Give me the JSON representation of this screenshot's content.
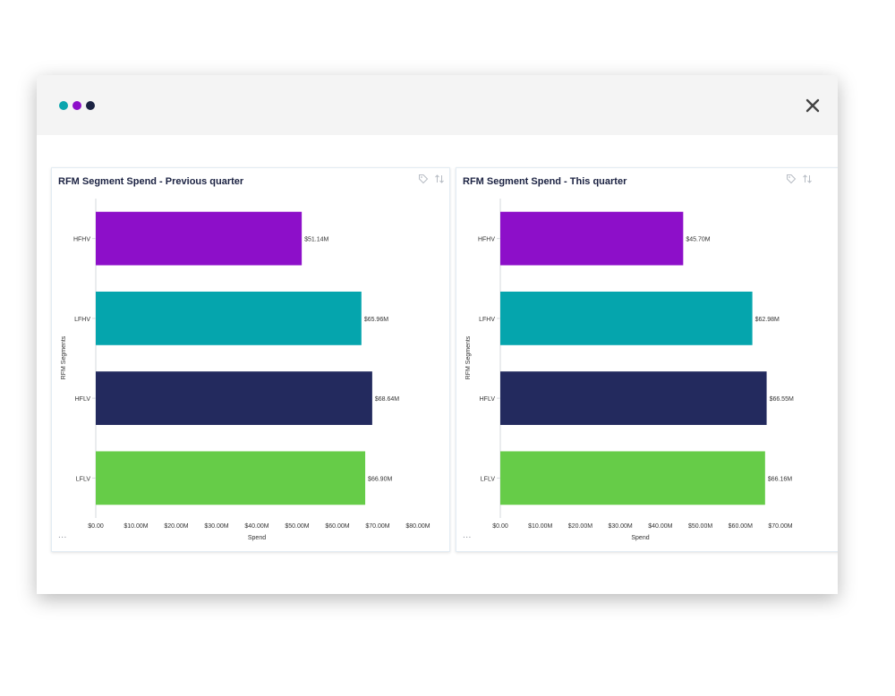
{
  "window": {
    "dots": [
      {
        "name": "teal-dot",
        "color": "#0aa5ad"
      },
      {
        "name": "purple-dot",
        "color": "#8d0fc9"
      },
      {
        "name": "navy-dot",
        "color": "#1b2242"
      }
    ],
    "close_icon": "close-icon"
  },
  "panels": [
    {
      "title": "RFM Segment Spend - Previous quarter",
      "more_label": "...",
      "tag_icon": "tag-icon",
      "sort_icon": "sort-icon"
    },
    {
      "title": "RFM Segment Spend - This quarter",
      "more_label": "...",
      "tag_icon": "tag-icon",
      "sort_icon": "sort-icon"
    }
  ],
  "chart_data": [
    {
      "type": "bar",
      "orientation": "horizontal",
      "title": "RFM Segment Spend - Previous quarter",
      "xlabel": "Spend",
      "ylabel": "RFM Segments",
      "categories": [
        "HFHV",
        "LFHV",
        "HFLV",
        "LFLV"
      ],
      "values": [
        51.14,
        65.96,
        68.64,
        66.9
      ],
      "value_labels": [
        "$51.14M",
        "$65.96M",
        "$68.64M",
        "$66.90M"
      ],
      "colors": [
        "#8d0fc9",
        "#05a5ad",
        "#232a5e",
        "#66cc48"
      ],
      "xticks": [
        0,
        10,
        20,
        30,
        40,
        50,
        60,
        70,
        80
      ],
      "xtick_labels": [
        "$0.00",
        "$10.00M",
        "$20.00M",
        "$30.00M",
        "$40.00M",
        "$50.00M",
        "$60.00M",
        "$70.00M",
        "$80.00M"
      ],
      "xlim": [
        0,
        80
      ],
      "grid": false
    },
    {
      "type": "bar",
      "orientation": "horizontal",
      "title": "RFM Segment Spend - This quarter",
      "xlabel": "Spend",
      "ylabel": "RFM Segments",
      "categories": [
        "HFHV",
        "LFHV",
        "HFLV",
        "LFLV"
      ],
      "values": [
        45.7,
        62.98,
        66.55,
        66.16
      ],
      "value_labels": [
        "$45.70M",
        "$62.98M",
        "$66.55M",
        "$66.16M"
      ],
      "colors": [
        "#8d0fc9",
        "#05a5ad",
        "#232a5e",
        "#66cc48"
      ],
      "xticks": [
        0,
        10,
        20,
        30,
        40,
        50,
        60,
        70
      ],
      "xtick_labels": [
        "$0.00",
        "$10.00M",
        "$20.00M",
        "$30.00M",
        "$40.00M",
        "$50.00M",
        "$60.00M",
        "$70.00M"
      ],
      "xlim": [
        0,
        70
      ],
      "grid": false
    }
  ]
}
